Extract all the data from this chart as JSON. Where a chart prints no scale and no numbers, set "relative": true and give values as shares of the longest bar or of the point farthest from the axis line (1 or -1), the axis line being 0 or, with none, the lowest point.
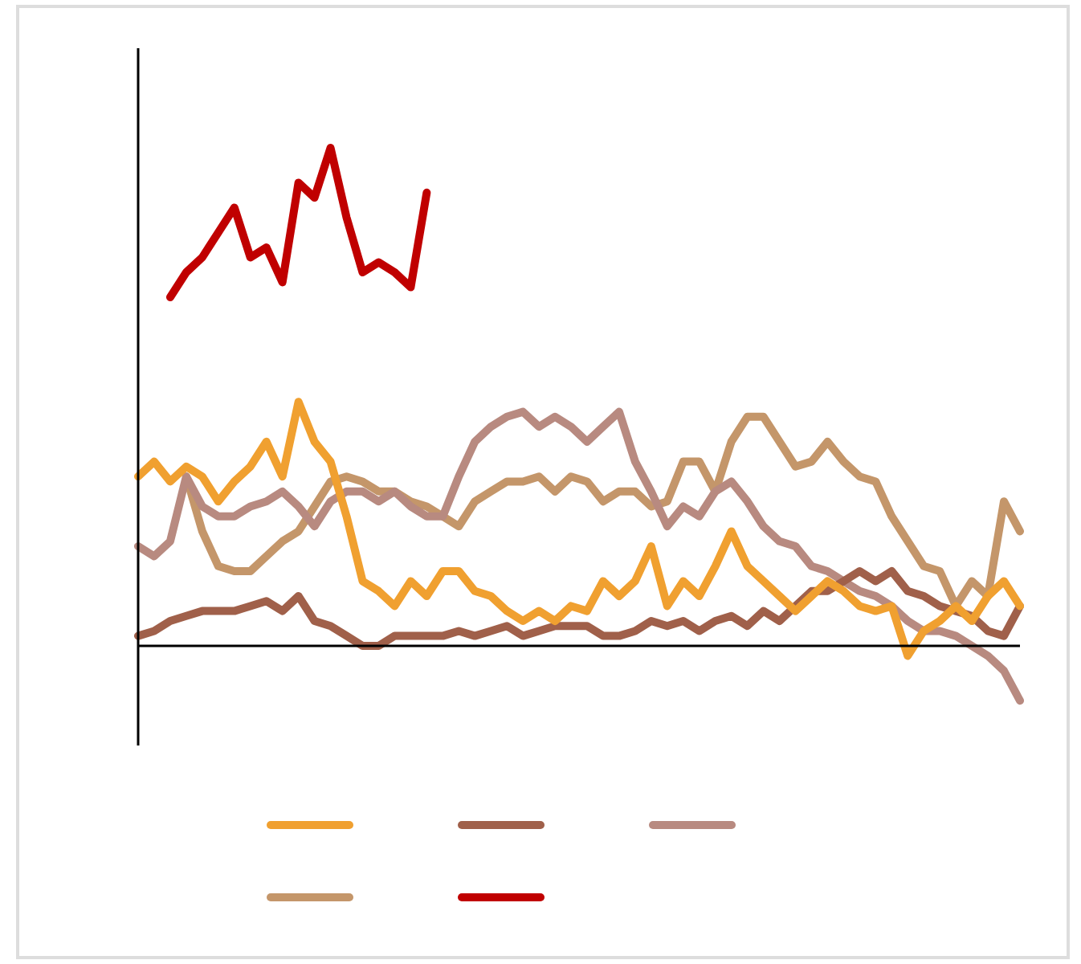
{
  "chart_data": {
    "type": "line",
    "relative": true,
    "grid": false,
    "marker": "none",
    "line_style": "solid",
    "categories": [
      null,
      null,
      null,
      null,
      null,
      null,
      null,
      null,
      null,
      null,
      null,
      null,
      null,
      null,
      null,
      null,
      null,
      null,
      null,
      null,
      null,
      null,
      null,
      null,
      null,
      null,
      null,
      null,
      null,
      null,
      null,
      null,
      null,
      null,
      null,
      null,
      null,
      null,
      null,
      null,
      null,
      null,
      null,
      null,
      null,
      null,
      null,
      null,
      null,
      null,
      null,
      null,
      null,
      null,
      null,
      null
    ],
    "series": [
      {
        "color": "#f0a030",
        "values": [
          0.34,
          0.37,
          0.33,
          0.36,
          0.34,
          0.29,
          0.33,
          0.36,
          0.41,
          0.34,
          0.49,
          0.41,
          0.37,
          0.26,
          0.13,
          0.11,
          0.08,
          0.13,
          0.1,
          0.15,
          0.15,
          0.11,
          0.1,
          0.07,
          0.05,
          0.07,
          0.05,
          0.08,
          0.07,
          0.13,
          0.1,
          0.13,
          0.2,
          0.08,
          0.13,
          0.1,
          0.16,
          0.23,
          0.16,
          0.13,
          0.1,
          0.07,
          0.1,
          0.13,
          0.11,
          0.08,
          0.07,
          0.08,
          -0.02,
          0.03,
          0.05,
          0.08,
          0.05,
          0.1,
          0.13,
          0.08
        ]
      },
      {
        "color": "#a0604a",
        "values": [
          0.02,
          0.03,
          0.05,
          0.06,
          0.07,
          0.07,
          0.07,
          0.08,
          0.09,
          0.07,
          0.1,
          0.05,
          0.04,
          0.02,
          0,
          0,
          0.02,
          0.02,
          0.02,
          0.02,
          0.03,
          0.02,
          0.03,
          0.04,
          0.02,
          0.03,
          0.04,
          0.04,
          0.04,
          0.02,
          0.02,
          0.03,
          0.05,
          0.04,
          0.05,
          0.03,
          0.05,
          0.06,
          0.04,
          0.07,
          0.05,
          0.08,
          0.11,
          0.11,
          0.13,
          0.15,
          0.13,
          0.15,
          0.11,
          0.1,
          0.08,
          0.07,
          0.06,
          0.03,
          0.02,
          0.08
        ]
      },
      {
        "color": "#b88a80",
        "values": [
          0.2,
          0.18,
          0.21,
          0.34,
          0.28,
          0.26,
          0.26,
          0.28,
          0.29,
          0.31,
          0.28,
          0.24,
          0.29,
          0.31,
          0.31,
          0.29,
          0.31,
          0.28,
          0.26,
          0.26,
          0.34,
          0.41,
          0.44,
          0.46,
          0.47,
          0.44,
          0.46,
          0.44,
          0.41,
          0.44,
          0.47,
          0.37,
          0.31,
          0.24,
          0.28,
          0.26,
          0.31,
          0.33,
          0.29,
          0.24,
          0.21,
          0.2,
          0.16,
          0.15,
          0.13,
          0.11,
          0.1,
          0.08,
          0.05,
          0.03,
          0.03,
          0.02,
          0,
          -0.02,
          -0.05,
          -0.11
        ]
      },
      {
        "color": "#c4966a",
        "values": [
          null,
          null,
          null,
          0.34,
          0.23,
          0.16,
          0.15,
          0.15,
          0.18,
          0.21,
          0.23,
          0.28,
          0.33,
          0.34,
          0.33,
          0.31,
          0.31,
          0.29,
          0.28,
          0.26,
          0.24,
          0.29,
          0.31,
          0.33,
          0.33,
          0.34,
          0.31,
          0.34,
          0.33,
          0.29,
          0.31,
          0.31,
          0.28,
          0.29,
          0.37,
          0.37,
          0.31,
          0.41,
          0.46,
          0.46,
          0.41,
          0.36,
          0.37,
          0.41,
          0.37,
          0.34,
          0.33,
          0.26,
          0.21,
          0.16,
          0.15,
          0.08,
          0.13,
          0.1,
          0.29,
          0.23
        ]
      },
      {
        "color": "#c00000",
        "values": [
          null,
          null,
          0.7,
          0.75,
          0.78,
          0.83,
          0.88,
          0.78,
          0.8,
          0.73,
          0.93,
          0.9,
          1,
          0.86,
          0.75,
          0.77,
          0.75,
          0.72,
          0.91,
          null,
          null,
          null,
          null,
          null,
          null,
          null,
          null,
          null,
          null,
          null,
          null,
          null,
          null,
          null,
          null,
          null,
          null,
          null,
          null,
          null,
          null,
          null,
          null,
          null,
          null,
          null,
          null,
          null,
          null,
          null,
          null,
          null,
          null,
          null,
          null,
          null
        ]
      }
    ]
  }
}
